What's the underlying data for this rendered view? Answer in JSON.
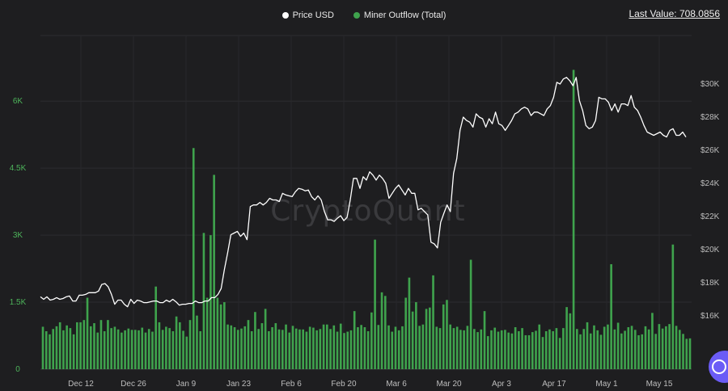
{
  "legend": {
    "price_label": "Price USD",
    "outflow_label": "Miner Outflow (Total)",
    "price_color": "#ffffff",
    "outflow_color": "#3fa34d"
  },
  "last_value": "Last Value: 708.0856",
  "watermark": "CryptoQuant",
  "chart_data": {
    "type": "bar+line",
    "x_ticks": [
      "Dec 12",
      "Dec 26",
      "Jan 9",
      "Jan 23",
      "Feb 6",
      "Feb 20",
      "Mar 6",
      "Mar 20",
      "Apr 3",
      "Apr 17",
      "May 1",
      "May 15"
    ],
    "left_axis": {
      "ticks": [
        "0",
        "1.5K",
        "3K",
        "4.5K",
        "6K"
      ],
      "ylim": [
        0,
        7000
      ]
    },
    "right_axis": {
      "ticks": [
        "$16K",
        "$18K",
        "$20K",
        "$22K",
        "$24K",
        "$26K",
        "$28K",
        "$30K"
      ]
    },
    "grid": true,
    "legend_position": "top-center",
    "series": [
      {
        "name": "Miner Outflow (Total)",
        "type": "bar",
        "axis": "left",
        "color": "#3fa34d",
        "values": [
          950,
          850,
          780,
          900,
          960,
          1050,
          870,
          980,
          920,
          780,
          1050,
          1050,
          1100,
          1600,
          960,
          1030,
          820,
          1100,
          850,
          1100,
          920,
          950,
          890,
          820,
          870,
          910,
          880,
          880,
          870,
          930,
          820,
          900,
          840,
          1850,
          1050,
          880,
          950,
          920,
          850,
          1180,
          1050,
          860,
          730,
          1100,
          4950,
          1200,
          850,
          3050,
          1600,
          3000,
          4350,
          1600,
          1450,
          1500,
          1000,
          980,
          940,
          880,
          910,
          960,
          1100,
          850,
          1280,
          900,
          1030,
          1350,
          850,
          940,
          1030,
          890,
          880,
          1000,
          820,
          970,
          910,
          890,
          890,
          840,
          950,
          930,
          870,
          900,
          1000,
          1000,
          900,
          980,
          840,
          1020,
          810,
          840,
          870,
          1300,
          940,
          990,
          940,
          850,
          1270,
          2900,
          990,
          1720,
          1640,
          980,
          840,
          950,
          870,
          960,
          1600,
          2050,
          1290,
          1500,
          970,
          1000,
          1350,
          1380,
          2100,
          950,
          920,
          1450,
          1550,
          1000,
          920,
          950,
          880,
          870,
          970,
          2450,
          900,
          830,
          890,
          1300,
          740,
          870,
          930,
          840,
          870,
          880,
          820,
          800,
          940,
          850,
          920,
          760,
          760,
          830,
          860,
          1000,
          720,
          850,
          890,
          850,
          920,
          700,
          920,
          1390,
          1250,
          6700,
          900,
          780,
          900,
          1050,
          800,
          980,
          870,
          770,
          950,
          1000,
          2350,
          890,
          1040,
          800,
          860,
          940,
          970,
          880,
          760,
          780,
          960,
          890,
          1260,
          790,
          1010,
          910,
          960,
          1010,
          2790,
          970,
          880,
          790,
          680,
          690
        ]
      },
      {
        "name": "Price USD",
        "type": "line",
        "axis": "right",
        "color": "#ffffff",
        "values": [
          17150,
          17000,
          17150,
          16950,
          17000,
          17100,
          17000,
          17050,
          17150,
          17200,
          16900,
          16900,
          17250,
          17250,
          17300,
          17400,
          17400,
          17400,
          17500,
          17900,
          17950,
          17750,
          17300,
          16700,
          16950,
          16950,
          16700,
          16550,
          17000,
          16750,
          16950,
          16900,
          16800,
          16800,
          16850,
          16900,
          16900,
          16800,
          16800,
          16950,
          16850,
          17000,
          16850,
          16650,
          16700,
          16700,
          16750,
          16750,
          16900,
          16800,
          16800,
          16900,
          16900,
          17100,
          17100,
          17300,
          17650,
          18800,
          19800,
          20900,
          21000,
          21100,
          20800,
          21000,
          20600,
          22600,
          22700,
          22700,
          22850,
          22700,
          22850,
          23100,
          23000,
          23000,
          22900,
          23400,
          23300,
          23250,
          23200,
          23500,
          23700,
          23650,
          23550,
          23600,
          23200,
          23000,
          23250,
          23000,
          22300,
          21800,
          21800,
          21700,
          21900,
          22050,
          21750,
          21950,
          23000,
          24300,
          24300,
          23700,
          24400,
          24200,
          24700,
          24500,
          24200,
          24500,
          24300,
          24000,
          23100,
          23400,
          23700,
          23900,
          23600,
          23300,
          23700,
          23400,
          23400,
          22400,
          22500,
          22300,
          22100,
          20450,
          20350,
          20100,
          21650,
          22200,
          22700,
          22300,
          24600,
          25500,
          27200,
          28000,
          27800,
          27700,
          27400,
          28200,
          28000,
          27900,
          27400,
          27900,
          27600,
          28300,
          27600,
          27500,
          27200,
          27500,
          27800,
          28200,
          28300,
          28500,
          28600,
          28500,
          28100,
          28300,
          28300,
          28200,
          28100,
          28500,
          28700,
          29200,
          30100,
          30000,
          30300,
          30400,
          30200,
          29900,
          30400,
          29000,
          28400,
          27500,
          27300,
          27400,
          27800,
          29200,
          29100,
          29100,
          28900,
          28400,
          28800,
          28300,
          28800,
          28800,
          28700,
          29300,
          28600,
          28400,
          28000,
          27500,
          27100,
          27000,
          26900,
          27000,
          27100,
          26900,
          26800,
          27200,
          27300,
          26900,
          26900,
          27100,
          26800
        ]
      }
    ]
  }
}
